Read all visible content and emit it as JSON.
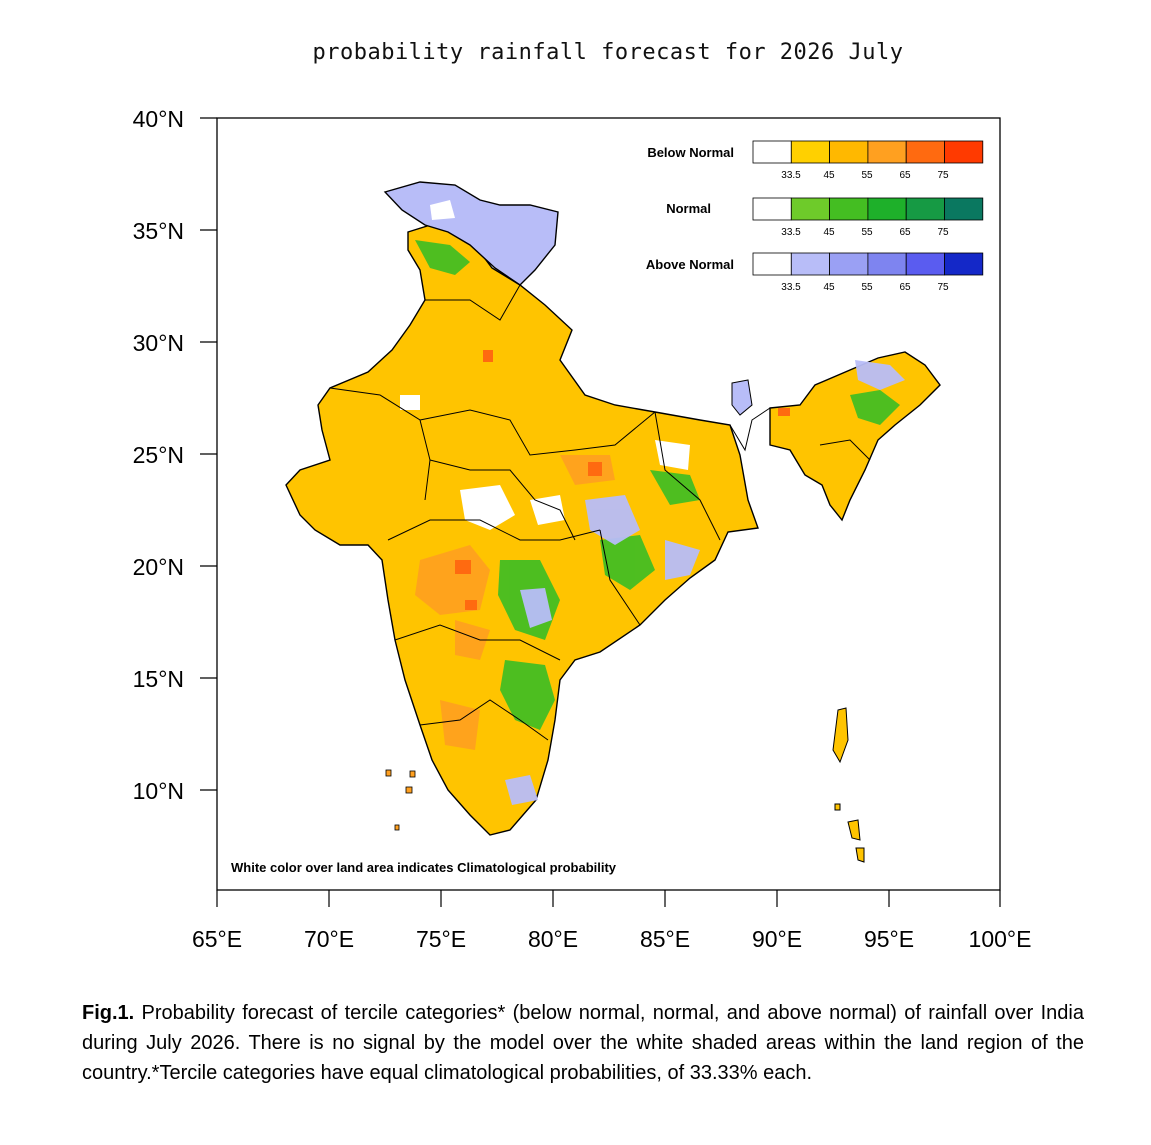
{
  "title": "probability rainfall forecast for 2026 July",
  "map": {
    "lat_ticks": [
      "40°N",
      "35°N",
      "30°N",
      "25°N",
      "20°N",
      "15°N",
      "10°N"
    ],
    "lon_ticks": [
      "65°E",
      "70°E",
      "75°E",
      "80°E",
      "85°E",
      "90°E",
      "95°E",
      "100°E"
    ],
    "lon_range": [
      65,
      100
    ],
    "lat_range": [
      5.5,
      40
    ],
    "note": "White color over land area indicates Climatological probability"
  },
  "legend": {
    "rows": [
      {
        "label": "Below Normal",
        "colors": [
          "#ffffff",
          "#ffd000",
          "#ffb800",
          "#ffa020",
          "#ff6a10",
          "#ff3a00"
        ]
      },
      {
        "label": "Normal",
        "colors": [
          "#ffffff",
          "#6ecb2a",
          "#44be22",
          "#1eb02a",
          "#169a44",
          "#0a7860"
        ]
      },
      {
        "label": "Above Normal",
        "colors": [
          "#ffffff",
          "#b8bdf8",
          "#9aa0f4",
          "#7e84f0",
          "#5a5cf0",
          "#1428c8"
        ]
      }
    ],
    "ticks": [
      "33.5",
      "45",
      "55",
      "65",
      "75"
    ]
  },
  "caption": {
    "lead": "Fig.1.",
    "text": " Probability forecast of tercile categories* (below normal, normal, and above normal) of rainfall over India during July 2026. There is no signal by the model over the white shaded areas within the land region of the country.*Tercile categories have equal climatological probabilities, of 33.33% each."
  }
}
